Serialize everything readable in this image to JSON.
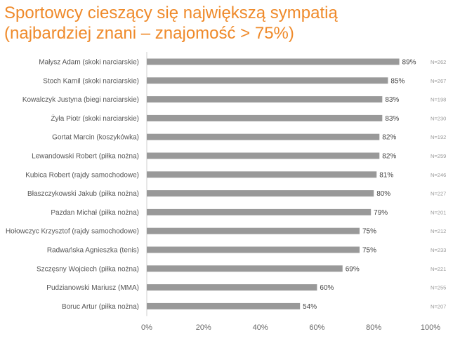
{
  "chart_data": {
    "type": "bar",
    "orientation": "horizontal",
    "title_line1": "Sportowcy cieszący się największą sympatią",
    "title_line2": "(najbardziej znani – znajomość > 75%)",
    "categories": [
      "Małysz Adam (skoki narciarskie)",
      "Stoch Kamil (skoki narciarskie)",
      "Kowalczyk Justyna (biegi narciarskie)",
      "Żyła Piotr (skoki narciarskie)",
      "Gortat Marcin (koszykówka)",
      "Lewandowski Robert (piłka nożna)",
      "Kubica Robert (rajdy samochodowe)",
      "Błaszczykowski Jakub (piłka nożna)",
      "Pazdan Michał (piłka nożna)",
      "Hołowczyc Krzysztof (rajdy samochodowe)",
      "Radwańska Agnieszka (tenis)",
      "Szczęsny Wojciech (piłka nożna)",
      "Pudzianowski Mariusz (MMA)",
      "Boruc Artur (piłka nożna)"
    ],
    "values": [
      89,
      85,
      83,
      83,
      82,
      82,
      81,
      80,
      79,
      75,
      75,
      69,
      60,
      54
    ],
    "value_labels": [
      "89%",
      "85%",
      "83%",
      "83%",
      "82%",
      "82%",
      "81%",
      "80%",
      "79%",
      "75%",
      "75%",
      "69%",
      "60%",
      "54%"
    ],
    "n_labels": [
      "N=262",
      "N=267",
      "N=198",
      "N=230",
      "N=192",
      "N=259",
      "N=246",
      "N=227",
      "N=201",
      "N=212",
      "N=233",
      "N=221",
      "N=255",
      "N=207"
    ],
    "xlim": [
      0,
      100
    ],
    "x_ticks": [
      0,
      20,
      40,
      60,
      80,
      100
    ],
    "x_tick_labels": [
      "0%",
      "20%",
      "40%",
      "60%",
      "80%",
      "100%"
    ],
    "bar_color": "#999999",
    "title_color": "#ef8a2a",
    "grid": false,
    "legend": "none"
  }
}
